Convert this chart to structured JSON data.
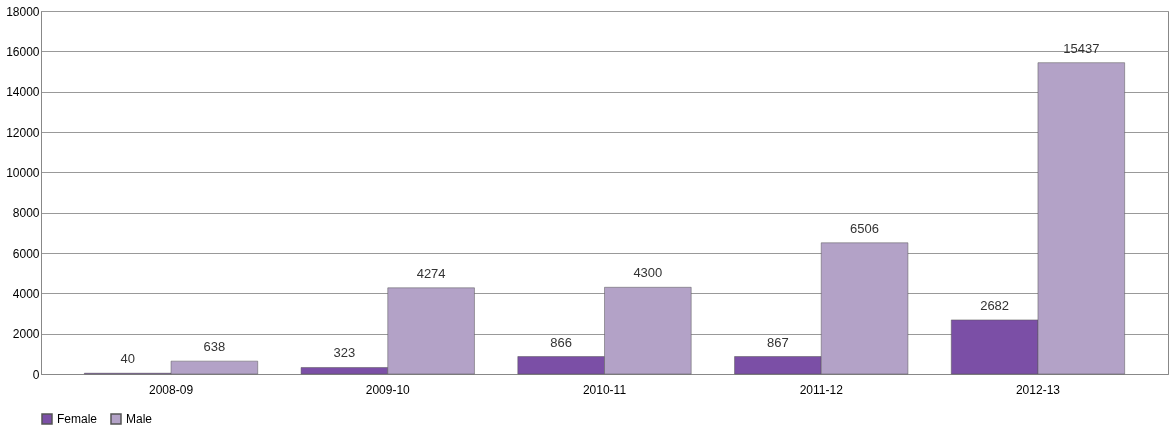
{
  "chart_data": {
    "type": "bar",
    "categories": [
      "2008-09",
      "2009-10",
      "2010-11",
      "2011-12",
      "2012-13"
    ],
    "series": [
      {
        "name": "Female",
        "color": "#7b4fa6",
        "values": [
          40,
          323,
          866,
          867,
          2682
        ]
      },
      {
        "name": "Male",
        "color": "#b3a2c7",
        "values": [
          638,
          4274,
          4300,
          6506,
          15437
        ]
      }
    ],
    "ylim": [
      0,
      18000
    ],
    "yticks": [
      0,
      2000,
      4000,
      6000,
      8000,
      10000,
      12000,
      14000,
      16000,
      18000
    ],
    "grid": "y",
    "legend": "bottom",
    "data_labels": true
  }
}
